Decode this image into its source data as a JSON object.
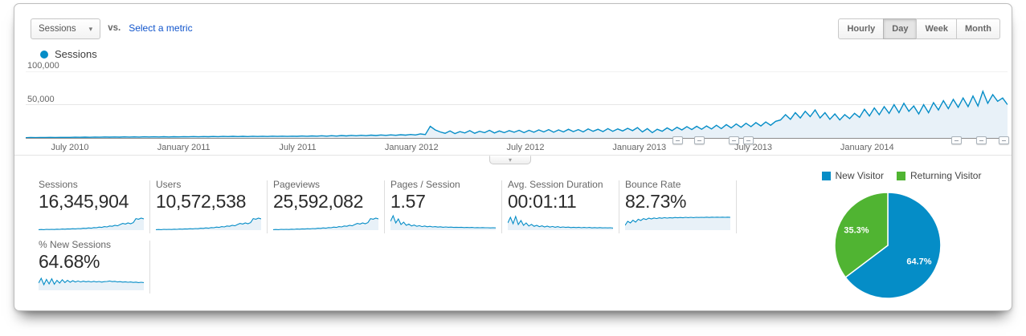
{
  "colors": {
    "accent_blue": "#058dc7",
    "area_fill": "#e8f1f8",
    "green": "#50b432",
    "link_blue": "#1155cc"
  },
  "toolbar": {
    "metric_selector": "Sessions",
    "vs_label": "vs.",
    "select_metric_label": "Select a metric",
    "granularity": {
      "options": [
        "Hourly",
        "Day",
        "Week",
        "Month"
      ],
      "selected": "Day"
    }
  },
  "legend": {
    "label": "Sessions",
    "color": "#058dc7"
  },
  "chart_data": [
    {
      "type": "area",
      "title": "Sessions daily timeseries",
      "ylim": [
        0,
        100000
      ],
      "grid": "horizontal",
      "yticks": [
        {
          "label": "50,000",
          "value": 50000
        },
        {
          "label": "100,000",
          "value": 100000
        }
      ],
      "xticks": [
        {
          "label": "July 2010",
          "pos": 0.045
        },
        {
          "label": "January 2011",
          "pos": 0.161
        },
        {
          "label": "July 2011",
          "pos": 0.277
        },
        {
          "label": "January 2012",
          "pos": 0.393
        },
        {
          "label": "July 2012",
          "pos": 0.509
        },
        {
          "label": "January 2013",
          "pos": 0.625
        },
        {
          "label": "July 2013",
          "pos": 0.741
        },
        {
          "label": "January 2014",
          "pos": 0.857
        }
      ],
      "annotation_marker_positions": [
        0.664,
        0.686,
        0.721,
        0.736,
        0.948,
        0.973,
        0.996
      ],
      "series": [
        {
          "name": "Sessions",
          "color": "#058dc7",
          "values": [
            400,
            600,
            500,
            700,
            600,
            800,
            700,
            900,
            800,
            900,
            1100,
            950,
            1200,
            1000,
            1300,
            1100,
            1400,
            1200,
            1500,
            1250,
            1550,
            1300,
            1600,
            1350,
            1650,
            1400,
            1700,
            1450,
            1750,
            1500,
            1800,
            1550,
            1900,
            1650,
            2000,
            1700,
            2100,
            1800,
            2200,
            1900,
            2300,
            2000,
            2400,
            2050,
            2450,
            2100,
            2500,
            2150,
            2550,
            2200,
            2600,
            2250,
            2650,
            2300,
            2700,
            2400,
            2900,
            2500,
            3000,
            2600,
            3200,
            2700,
            3400,
            2800,
            3600,
            3000,
            3800,
            3200,
            4000,
            3400,
            4200,
            3600,
            4400,
            3800,
            4600,
            4000,
            4800,
            4200,
            5200,
            4500,
            6000,
            5000,
            17500,
            12000,
            9000,
            7000,
            10500,
            6500,
            9500,
            7500,
            11000,
            7000,
            10000,
            8000,
            11500,
            7500,
            10500,
            8000,
            11000,
            8500,
            11500,
            8000,
            11500,
            8500,
            12000,
            9000,
            12500,
            8500,
            12000,
            9000,
            13000,
            9500,
            12500,
            9000,
            13500,
            10000,
            13000,
            9500,
            14000,
            10000,
            13500,
            10500,
            14500,
            11000,
            15500,
            9000,
            14000,
            8000,
            13000,
            10000,
            15000,
            11000,
            16000,
            12000,
            17000,
            12500,
            17500,
            13000,
            18000,
            13500,
            19000,
            14000,
            20000,
            15000,
            21000,
            16000,
            22000,
            17000,
            23000,
            18000,
            24000,
            19000,
            25000,
            27000,
            35000,
            28000,
            38000,
            30000,
            40000,
            32000,
            42000,
            30000,
            38000,
            28000,
            36000,
            27000,
            35000,
            29000,
            37000,
            31000,
            43000,
            33000,
            45000,
            35000,
            47000,
            37000,
            50000,
            38000,
            52000,
            40000,
            48000,
            36000,
            50000,
            38000,
            53000,
            42000,
            56000,
            44000,
            58000,
            46000,
            60000,
            47000,
            63000,
            48000,
            70000,
            52000,
            65000,
            55000,
            60000,
            50000
          ]
        }
      ]
    },
    {
      "type": "pie",
      "title": "New vs Returning Visitors",
      "legend_position": "top",
      "slices": [
        {
          "label": "New Visitor",
          "pct": 64.7,
          "pct_label": "64.7%",
          "color": "#058dc7"
        },
        {
          "label": "Returning Visitor",
          "pct": 35.3,
          "pct_label": "35.3%",
          "color": "#50b432"
        }
      ]
    }
  ],
  "metrics": {
    "row1": [
      {
        "label": "Sessions",
        "value": "16,345,904",
        "spark": [
          0.03,
          0.04,
          0.03,
          0.05,
          0.04,
          0.05,
          0.04,
          0.06,
          0.05,
          0.07,
          0.06,
          0.08,
          0.07,
          0.09,
          0.08,
          0.1,
          0.09,
          0.12,
          0.11,
          0.14,
          0.12,
          0.16,
          0.15,
          0.19,
          0.17,
          0.22,
          0.2,
          0.26,
          0.24,
          0.3,
          0.27,
          0.35,
          0.42,
          0.38,
          0.45,
          0.4,
          0.47,
          0.72,
          0.68,
          0.75,
          0.7
        ]
      },
      {
        "label": "Users",
        "value": "10,572,538",
        "spark": [
          0.03,
          0.04,
          0.03,
          0.05,
          0.04,
          0.05,
          0.04,
          0.06,
          0.05,
          0.07,
          0.06,
          0.08,
          0.07,
          0.09,
          0.08,
          0.1,
          0.09,
          0.12,
          0.11,
          0.14,
          0.12,
          0.16,
          0.15,
          0.19,
          0.17,
          0.22,
          0.2,
          0.26,
          0.24,
          0.3,
          0.27,
          0.35,
          0.42,
          0.38,
          0.45,
          0.4,
          0.47,
          0.72,
          0.68,
          0.75,
          0.7
        ]
      },
      {
        "label": "Pageviews",
        "value": "25,592,082",
        "spark": [
          0.03,
          0.04,
          0.03,
          0.05,
          0.04,
          0.05,
          0.04,
          0.06,
          0.05,
          0.07,
          0.06,
          0.08,
          0.07,
          0.09,
          0.08,
          0.1,
          0.09,
          0.12,
          0.11,
          0.14,
          0.12,
          0.16,
          0.15,
          0.19,
          0.17,
          0.22,
          0.2,
          0.26,
          0.24,
          0.3,
          0.27,
          0.35,
          0.42,
          0.38,
          0.45,
          0.4,
          0.47,
          0.72,
          0.68,
          0.75,
          0.7
        ]
      },
      {
        "label": "Pages / Session",
        "value": "1.57",
        "spark": [
          0.55,
          0.9,
          0.45,
          0.7,
          0.35,
          0.5,
          0.3,
          0.38,
          0.26,
          0.32,
          0.24,
          0.28,
          0.22,
          0.26,
          0.21,
          0.24,
          0.2,
          0.22,
          0.19,
          0.21,
          0.18,
          0.2,
          0.18,
          0.19,
          0.17,
          0.18,
          0.17,
          0.18,
          0.16,
          0.17,
          0.16,
          0.17,
          0.15,
          0.16,
          0.15,
          0.16,
          0.15,
          0.15,
          0.14,
          0.15,
          0.14
        ]
      },
      {
        "label": "Avg. Session Duration",
        "value": "00:01:11",
        "spark": [
          0.45,
          0.8,
          0.4,
          0.85,
          0.35,
          0.6,
          0.3,
          0.45,
          0.26,
          0.36,
          0.24,
          0.3,
          0.22,
          0.27,
          0.2,
          0.25,
          0.19,
          0.23,
          0.18,
          0.22,
          0.17,
          0.2,
          0.17,
          0.19,
          0.16,
          0.18,
          0.16,
          0.18,
          0.15,
          0.17,
          0.15,
          0.17,
          0.14,
          0.16,
          0.14,
          0.16,
          0.14,
          0.15,
          0.14,
          0.15,
          0.13
        ]
      },
      {
        "label": "Bounce Rate",
        "value": "82.73%",
        "spark": [
          0.3,
          0.55,
          0.45,
          0.62,
          0.5,
          0.68,
          0.6,
          0.72,
          0.66,
          0.75,
          0.7,
          0.76,
          0.72,
          0.77,
          0.74,
          0.78,
          0.75,
          0.78,
          0.76,
          0.79,
          0.77,
          0.79,
          0.77,
          0.8,
          0.78,
          0.8,
          0.78,
          0.8,
          0.79,
          0.8,
          0.79,
          0.81,
          0.79,
          0.81,
          0.8,
          0.81,
          0.8,
          0.81,
          0.8,
          0.81,
          0.8
        ]
      }
    ],
    "row2": [
      {
        "label": "% New Sessions",
        "value": "64.68%",
        "spark": [
          0.45,
          0.75,
          0.35,
          0.68,
          0.4,
          0.72,
          0.38,
          0.62,
          0.45,
          0.66,
          0.48,
          0.62,
          0.5,
          0.6,
          0.52,
          0.58,
          0.52,
          0.57,
          0.53,
          0.56,
          0.52,
          0.56,
          0.52,
          0.55,
          0.51,
          0.54,
          0.55,
          0.58,
          0.54,
          0.56,
          0.52,
          0.54,
          0.51,
          0.53,
          0.5,
          0.52,
          0.49,
          0.51,
          0.48,
          0.5,
          0.48
        ]
      }
    ]
  }
}
